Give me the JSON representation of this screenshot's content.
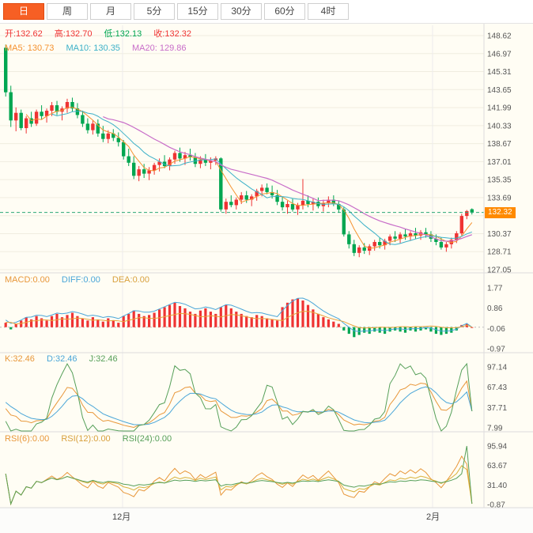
{
  "toolbar": {
    "tabs": [
      {
        "label": "日",
        "active": true
      },
      {
        "label": "周",
        "active": false
      },
      {
        "label": "月",
        "active": false
      },
      {
        "label": "5分",
        "active": false
      },
      {
        "label": "15分",
        "active": false
      },
      {
        "label": "30分",
        "active": false
      },
      {
        "label": "60分",
        "active": false
      },
      {
        "label": "4时",
        "active": false
      }
    ]
  },
  "main_panel": {
    "ohlc": {
      "open": "开:132.62",
      "high": "高:132.70",
      "low": "低:132.13",
      "close": "收:132.32"
    },
    "ma": {
      "ma5": "MA5: 130.73",
      "ma10": "MA10: 130.35",
      "ma20": "MA20: 129.86"
    },
    "price_tag": "132.32",
    "y_ticks": [
      "148.62",
      "146.97",
      "145.31",
      "143.65",
      "141.99",
      "140.33",
      "138.67",
      "137.01",
      "135.35",
      "133.69",
      "132.03",
      "130.37",
      "128.71",
      "127.05"
    ]
  },
  "macd_panel": {
    "labels": {
      "macd": "MACD:0.00",
      "diff": "DIFF:0.00",
      "dea": "DEA:0.00"
    },
    "y_ticks": [
      "1.77",
      "0.86",
      "-0.06",
      "-0.97"
    ]
  },
  "kdj_panel": {
    "labels": {
      "k": "K:32.46",
      "d": "D:32.46",
      "j": "J:32.46"
    },
    "y_ticks": [
      "97.14",
      "67.43",
      "37.71",
      "7.99"
    ]
  },
  "rsi_panel": {
    "labels": {
      "rsi6": "RSI(6):0.00",
      "rsi12": "RSI(12):0.00",
      "rsi24": "RSI(24):0.00"
    },
    "y_ticks": [
      "95.94",
      "63.67",
      "31.40",
      "-0.87"
    ]
  },
  "x_axis": [
    "12月",
    "2月"
  ],
  "colors": {
    "up": "#ef3333",
    "down": "#00a651",
    "chart_bg": "#fffdf4",
    "ma5": "#f5922f",
    "ma10": "#3db1c8",
    "ma20": "#c86dc8",
    "diff": "#4aa6d8",
    "dea": "#e8a33d",
    "k": "#e8973a",
    "d": "#4aa6d8",
    "j": "#57a05a",
    "rsi6": "#e8973a",
    "rsi12": "#d8b23c",
    "rsi24": "#57a05a",
    "price_line": "#2aa876",
    "price_tag_bg": "#ff8a00",
    "tab_active_bg": "#f75f24"
  },
  "chart_data": {
    "type": "candlestick",
    "ohlc_format": [
      "open",
      "high",
      "low",
      "close"
    ],
    "last_price": 132.32,
    "candles": [
      [
        147.5,
        147.8,
        143.0,
        143.4
      ],
      [
        143.4,
        144.0,
        140.2,
        140.8
      ],
      [
        140.8,
        142.0,
        139.8,
        141.5
      ],
      [
        141.5,
        141.8,
        139.9,
        140.1
      ],
      [
        140.1,
        141.2,
        139.6,
        141.0
      ],
      [
        141.0,
        141.6,
        140.2,
        140.5
      ],
      [
        140.5,
        141.8,
        140.3,
        141.6
      ],
      [
        141.6,
        142.2,
        140.9,
        141.2
      ],
      [
        141.2,
        141.9,
        140.6,
        141.7
      ],
      [
        141.7,
        142.5,
        141.2,
        142.2
      ],
      [
        142.2,
        142.6,
        141.3,
        141.6
      ],
      [
        141.6,
        142.1,
        140.8,
        141.9
      ],
      [
        141.9,
        142.8,
        141.5,
        142.5
      ],
      [
        142.5,
        142.9,
        141.6,
        141.9
      ],
      [
        141.9,
        142.4,
        141.0,
        141.3
      ],
      [
        141.3,
        141.7,
        140.2,
        140.5
      ],
      [
        140.5,
        141.0,
        139.6,
        139.9
      ],
      [
        139.9,
        140.8,
        139.5,
        140.5
      ],
      [
        140.5,
        140.9,
        139.3,
        139.6
      ],
      [
        139.6,
        140.3,
        138.8,
        139.1
      ],
      [
        139.1,
        139.9,
        138.7,
        139.6
      ],
      [
        139.6,
        140.0,
        138.9,
        139.2
      ],
      [
        139.2,
        139.7,
        138.4,
        138.8
      ],
      [
        138.8,
        139.0,
        137.2,
        137.5
      ],
      [
        137.5,
        138.2,
        136.6,
        136.9
      ],
      [
        136.9,
        137.5,
        135.4,
        135.7
      ],
      [
        135.7,
        136.6,
        135.2,
        136.3
      ],
      [
        136.3,
        136.8,
        135.5,
        135.9
      ],
      [
        135.9,
        136.5,
        135.3,
        136.2
      ],
      [
        136.2,
        136.9,
        135.8,
        136.7
      ],
      [
        136.7,
        137.3,
        136.1,
        137.0
      ],
      [
        137.0,
        137.6,
        136.4,
        136.6
      ],
      [
        136.6,
        137.4,
        136.2,
        137.2
      ],
      [
        137.2,
        138.0,
        136.8,
        137.8
      ],
      [
        137.8,
        138.3,
        137.0,
        137.3
      ],
      [
        137.3,
        137.9,
        136.7,
        137.6
      ],
      [
        137.6,
        138.2,
        137.1,
        137.4
      ],
      [
        137.4,
        137.8,
        136.5,
        136.8
      ],
      [
        136.8,
        137.5,
        136.4,
        137.2
      ],
      [
        137.2,
        137.7,
        136.6,
        136.9
      ],
      [
        136.9,
        137.4,
        136.3,
        137.1
      ],
      [
        137.1,
        137.5,
        136.7,
        137.3
      ],
      [
        137.3,
        137.4,
        132.4,
        132.6
      ],
      [
        132.6,
        133.6,
        132.2,
        133.3
      ],
      [
        133.3,
        133.9,
        132.8,
        133.0
      ],
      [
        133.0,
        133.7,
        132.6,
        133.5
      ],
      [
        133.5,
        134.2,
        133.1,
        133.9
      ],
      [
        133.9,
        134.3,
        133.2,
        133.5
      ],
      [
        133.5,
        134.0,
        132.9,
        133.8
      ],
      [
        133.8,
        134.5,
        133.4,
        134.3
      ],
      [
        134.3,
        134.9,
        133.8,
        134.6
      ],
      [
        134.6,
        135.0,
        134.0,
        134.2
      ],
      [
        134.2,
        134.8,
        133.6,
        133.9
      ],
      [
        133.9,
        134.4,
        133.0,
        133.3
      ],
      [
        133.3,
        133.8,
        132.5,
        132.8
      ],
      [
        132.8,
        133.4,
        132.2,
        133.1
      ],
      [
        133.1,
        133.6,
        132.4,
        132.6
      ],
      [
        132.6,
        133.2,
        132.1,
        133.0
      ],
      [
        133.0,
        135.4,
        132.6,
        133.4
      ],
      [
        133.4,
        133.9,
        132.8,
        133.1
      ],
      [
        133.1,
        133.6,
        132.5,
        133.3
      ],
      [
        133.3,
        133.7,
        132.7,
        132.9
      ],
      [
        132.9,
        133.5,
        132.4,
        133.2
      ],
      [
        133.2,
        133.8,
        132.8,
        133.5
      ],
      [
        133.5,
        133.9,
        132.9,
        133.1
      ],
      [
        133.1,
        133.4,
        132.3,
        132.6
      ],
      [
        132.6,
        132.8,
        130.1,
        130.3
      ],
      [
        130.3,
        130.6,
        129.0,
        129.4
      ],
      [
        129.4,
        129.8,
        128.3,
        128.6
      ],
      [
        128.6,
        129.3,
        128.2,
        129.1
      ],
      [
        129.1,
        129.5,
        128.5,
        128.8
      ],
      [
        128.8,
        129.4,
        128.4,
        129.2
      ],
      [
        129.2,
        129.8,
        128.8,
        129.6
      ],
      [
        129.6,
        130.0,
        129.0,
        129.3
      ],
      [
        129.3,
        129.9,
        128.9,
        129.7
      ],
      [
        129.7,
        130.3,
        129.3,
        130.1
      ],
      [
        130.1,
        130.6,
        129.6,
        129.9
      ],
      [
        129.9,
        130.5,
        129.5,
        130.3
      ],
      [
        130.3,
        130.8,
        129.8,
        130.1
      ],
      [
        130.1,
        130.6,
        129.7,
        130.4
      ],
      [
        130.4,
        130.9,
        129.9,
        130.2
      ],
      [
        130.2,
        130.7,
        129.8,
        130.5
      ],
      [
        130.5,
        130.9,
        130.0,
        130.3
      ],
      [
        130.3,
        130.6,
        129.6,
        129.9
      ],
      [
        129.9,
        130.3,
        129.3,
        129.6
      ],
      [
        129.6,
        130.0,
        128.9,
        129.1
      ],
      [
        129.1,
        129.6,
        128.7,
        129.4
      ],
      [
        129.4,
        130.0,
        129.0,
        129.8
      ],
      [
        129.8,
        130.6,
        129.5,
        130.4
      ],
      [
        130.4,
        132.2,
        130.2,
        132.0
      ],
      [
        132.0,
        132.55,
        131.7,
        132.45
      ],
      [
        132.62,
        132.7,
        132.13,
        132.32
      ]
    ],
    "macd_hist": [
      0.2,
      -0.1,
      0.15,
      0.3,
      0.45,
      0.35,
      0.5,
      0.4,
      0.3,
      0.5,
      0.6,
      0.45,
      0.55,
      0.65,
      0.5,
      0.4,
      0.3,
      0.45,
      0.35,
      0.25,
      0.4,
      0.3,
      0.2,
      0.5,
      0.6,
      0.75,
      0.6,
      0.5,
      0.55,
      0.65,
      0.8,
      0.9,
      1.0,
      1.1,
      0.95,
      0.85,
      0.7,
      0.6,
      0.75,
      0.85,
      0.7,
      0.6,
      0.9,
      1.0,
      0.85,
      0.7,
      0.6,
      0.5,
      0.45,
      0.55,
      0.5,
      0.4,
      0.35,
      0.3,
      0.9,
      1.1,
      1.25,
      1.3,
      1.2,
      1.0,
      0.8,
      0.6,
      0.45,
      0.35,
      0.25,
      0.15,
      -0.15,
      -0.3,
      -0.45,
      -0.35,
      -0.25,
      -0.3,
      -0.2,
      -0.25,
      -0.3,
      -0.2,
      -0.15,
      -0.2,
      -0.25,
      -0.15,
      -0.2,
      -0.15,
      -0.1,
      -0.2,
      -0.3,
      -0.35,
      -0.3,
      -0.25,
      -0.15,
      0.1,
      0.15,
      0.0
    ]
  }
}
